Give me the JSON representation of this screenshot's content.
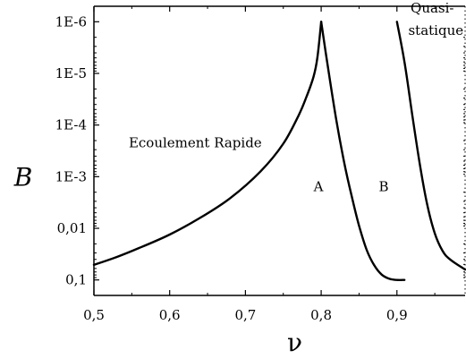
{
  "chart_data": {
    "type": "line",
    "xlabel": "ν",
    "ylabel": "B",
    "xlim": [
      0.5,
      0.99
    ],
    "ylim_log10": [
      -0.7,
      -6.3
    ],
    "y_scale": "log",
    "y_reversed": true,
    "x_ticks": [
      {
        "value": 0.5,
        "label": "0,5"
      },
      {
        "value": 0.6,
        "label": "0,6"
      },
      {
        "value": 0.7,
        "label": "0,7"
      },
      {
        "value": 0.8,
        "label": "0,8"
      },
      {
        "value": 0.9,
        "label": "0,9"
      }
    ],
    "y_ticks": [
      {
        "value": 0.1,
        "label": "0,1"
      },
      {
        "value": 0.01,
        "label": "0,01"
      },
      {
        "value": 0.001,
        "label": "1E-3"
      },
      {
        "value": 0.0001,
        "label": "1E-4"
      },
      {
        "value": 1e-05,
        "label": "1E-5"
      },
      {
        "value": 1e-06,
        "label": "1E-6"
      }
    ],
    "series": [
      {
        "x": [
          0.5,
          0.53,
          0.56,
          0.6,
          0.64,
          0.68,
          0.72,
          0.75,
          0.77,
          0.78,
          0.79,
          0.795,
          0.8
        ],
        "y": [
          0.051,
          0.036,
          0.024,
          0.0132,
          0.0063,
          0.0026,
          0.00079,
          0.00023,
          6.6e-05,
          3e-05,
          1.15e-05,
          5e-06,
          1e-06
        ]
      },
      {
        "x": [
          0.8,
          0.81,
          0.82,
          0.83,
          0.84,
          0.85,
          0.86,
          0.87,
          0.88,
          0.89,
          0.9,
          0.91
        ],
        "y": [
          1e-06,
          9.7e-06,
          8e-05,
          0.0005,
          0.0023,
          0.0089,
          0.026,
          0.052,
          0.079,
          0.095,
          0.1,
          0.1
        ]
      },
      {
        "x": [
          0.9,
          0.91,
          0.92,
          0.93,
          0.94,
          0.95,
          0.96,
          0.97,
          0.99
        ],
        "y": [
          1e-06,
          6e-06,
          6e-05,
          0.00055,
          0.0035,
          0.0125,
          0.027,
          0.04,
          0.063
        ]
      }
    ],
    "annotations": [
      {
        "text": "Ecoulement Rapide",
        "x": 0.546,
        "y": 0.00027
      },
      {
        "text": "A",
        "x": 0.79,
        "y": 0.0019
      },
      {
        "text": "B",
        "x": 0.876,
        "y": 0.0019
      },
      {
        "text": "Quasi-",
        "x": 0.918,
        "y": 6.6e-07
      },
      {
        "text": "statique",
        "x": 0.915,
        "y": 1.8e-06
      }
    ]
  }
}
